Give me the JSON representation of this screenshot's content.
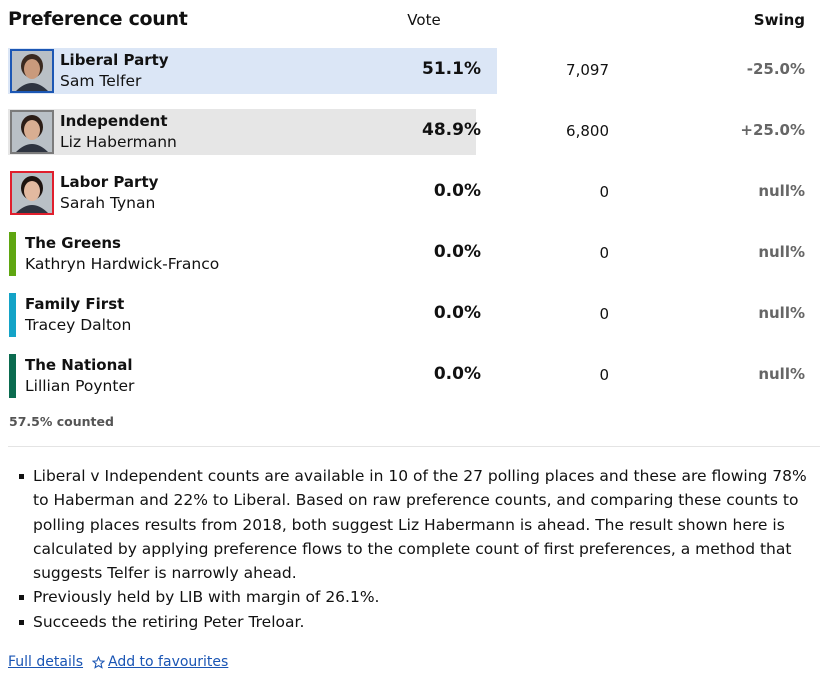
{
  "header": {
    "title": "Preference count",
    "vote": "Vote",
    "swing": "Swing"
  },
  "rows": [
    {
      "party": "Liberal Party",
      "candidate": "Sam Telfer",
      "vote": {
        "value": 51.1,
        "label": "51.1%"
      },
      "votes": "7,097",
      "swing": "-25.0%",
      "color": "#1c57b4",
      "bar_color": "#dbe6f6"
    },
    {
      "party": "Independent",
      "candidate": "Liz Habermann",
      "vote": {
        "value": 48.9,
        "label": "48.9%"
      },
      "votes": "6,800",
      "swing": "+25.0%",
      "color": "#7b7b7b",
      "bar_color": "#e6e6e6"
    },
    {
      "party": "Labor Party",
      "candidate": "Sarah Tynan",
      "vote": {
        "value": 0,
        "label": "0.0%"
      },
      "votes": "0",
      "swing": "null%",
      "color": "#e01f2d",
      "bar_color": "#f6dcdc"
    },
    {
      "party": "The Greens",
      "candidate": "Kathryn Hardwick-Franco",
      "vote": {
        "value": 0,
        "label": "0.0%"
      },
      "votes": "0",
      "swing": "null%",
      "color": "#5fa611",
      "bar_color": "#e3f0d6"
    },
    {
      "party": "Family First",
      "candidate": "Tracey Dalton",
      "vote": {
        "value": 0,
        "label": "0.0%"
      },
      "votes": "0",
      "swing": "null%",
      "color": "#14a3c7",
      "bar_color": "#d6eef5"
    },
    {
      "party": "The National",
      "candidate": "Lillian Poynter",
      "vote": {
        "value": 0,
        "label": "0.0%"
      },
      "votes": "0",
      "swing": "null%",
      "color": "#0b6b4f",
      "bar_color": "#d6e8e2"
    }
  ],
  "counted": "57.5% counted",
  "notes": [
    "Liberal v Independent counts are available in 10 of the 27 polling places and these are flowing 78% to Haberman and 22% to Liberal. Based on raw preference counts, and comparing these counts to polling places results from 2018, both suggest Liz Habermann is ahead. The result shown here is calculated by applying preference flows to the complete count of first preferences, a method that suggests Telfer is narrowly ahead.",
    "Previously held by LIB with margin of 26.1%.",
    "Succeeds the retiring Peter Treloar."
  ],
  "links": {
    "details": "Full details",
    "favourites": "Add to favourites"
  }
}
